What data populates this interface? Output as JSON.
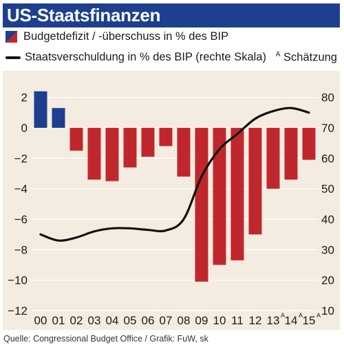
{
  "header": {
    "title": "US-Staatsfinanzen"
  },
  "legend": {
    "bar_label": "Budgetdefizit / -überschuss in % des BIP",
    "line_label": "Staatsverschuldung in % des BIP (rechte Skala)",
    "estimate_mark": "A",
    "estimate_label": "Schätzung"
  },
  "footer": {
    "source": "Quelle: Congressional Budget Office / Grafik: FuW, sk"
  },
  "colors": {
    "surplus": "#1e3f8f",
    "deficit": "#c0272d",
    "line": "#111111",
    "panel": "#f4ece0"
  },
  "chart_data": {
    "type": "bar+line",
    "categories": [
      "00",
      "01",
      "02",
      "03",
      "04",
      "05",
      "06",
      "07",
      "08",
      "09",
      "10",
      "11",
      "12",
      "13",
      "14",
      "15"
    ],
    "estimated": [
      false,
      false,
      false,
      false,
      false,
      false,
      false,
      false,
      false,
      false,
      false,
      false,
      false,
      true,
      true,
      true
    ],
    "estimate_mark": "A",
    "series": [
      {
        "name": "Budgetdefizit / -überschuss in % des BIP",
        "type": "bar",
        "axis": "left",
        "values": [
          2.4,
          1.3,
          -1.5,
          -3.4,
          -3.5,
          -2.6,
          -1.9,
          -1.2,
          -3.2,
          -10.1,
          -9.0,
          -8.7,
          -7.0,
          -4.0,
          -3.4,
          -2.1
        ]
      },
      {
        "name": "Staatsverschuldung in % des BIP (rechte Skala)",
        "type": "line",
        "axis": "right",
        "values": [
          35,
          33,
          34,
          36,
          37,
          37,
          36.5,
          36.3,
          40,
          54,
          63,
          68,
          73,
          75.5,
          76.5,
          75
        ]
      }
    ],
    "y_left": {
      "ylim": [
        -12,
        2.8
      ],
      "ticks": [
        2,
        0,
        -2,
        -4,
        -6,
        -8,
        -10,
        -12
      ]
    },
    "y_right": {
      "ylim": [
        10,
        84
      ],
      "ticks": [
        80,
        70,
        60,
        50,
        40,
        30,
        20,
        10
      ]
    },
    "grid": true
  }
}
